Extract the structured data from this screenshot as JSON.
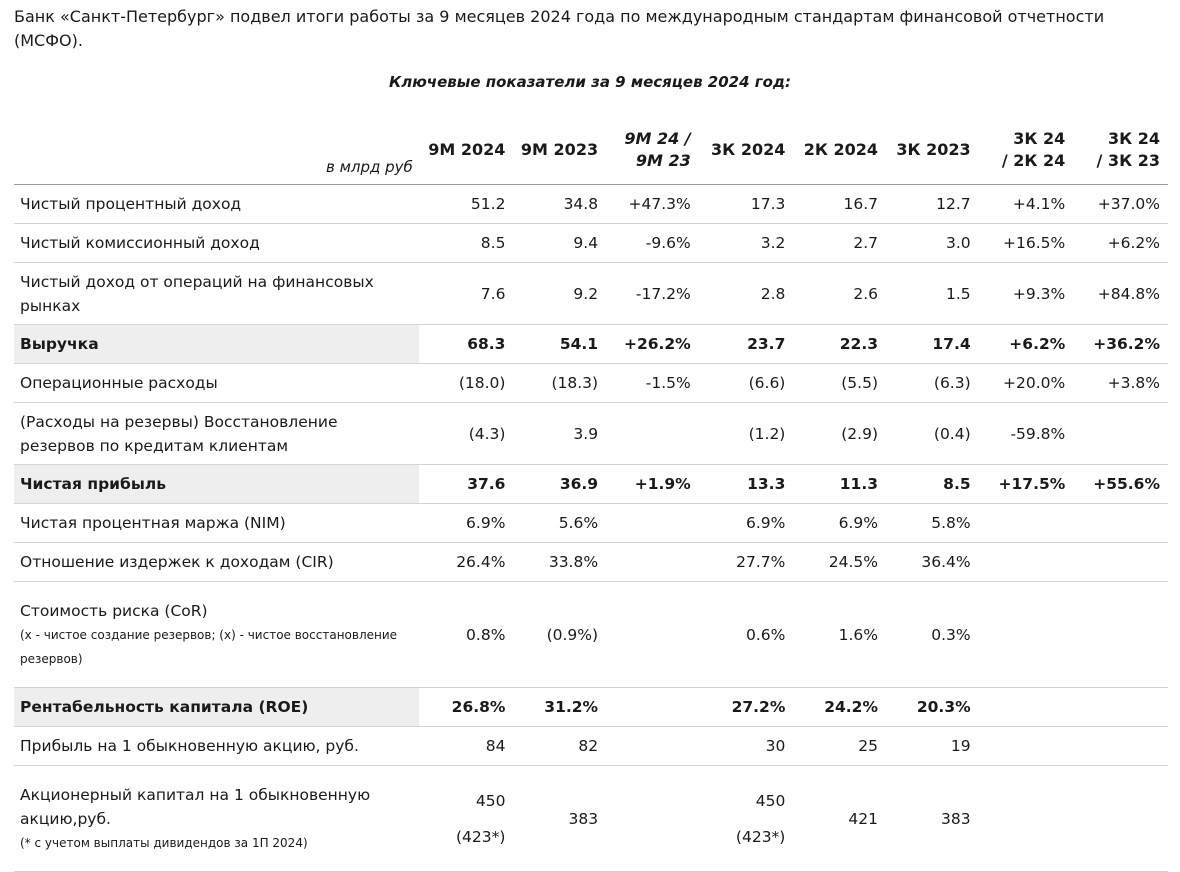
{
  "intro": "Банк «Санкт-Петербург» подвел итоги работы за 9 месяцев 2024 года по международным стандартам финансовой отчетности (МСФО).",
  "caption": "Ключевые показатели за 9 месяцев 2024 год:",
  "table": {
    "unit_label": "в млрд руб",
    "headers": [
      "9M 2024",
      "9M 2023",
      "9M 24 /",
      "9M 23",
      "3К 2024",
      "2К 2024",
      "3К  2023",
      "3К 24",
      "/ 2К 24",
      "3К 24",
      "/ 3К 23"
    ],
    "rows": [
      {
        "label": "Чистый процентный доход",
        "v": [
          "51.2",
          "34.8",
          "+47.3%",
          "17.3",
          "16.7",
          "12.7",
          "+4.1%",
          "+37.0%"
        ]
      },
      {
        "label": "Чистый комиссионный доход",
        "v": [
          "8.5",
          "9.4",
          "-9.6%",
          "3.2",
          "2.7",
          "3.0",
          "+16.5%",
          "+6.2%"
        ]
      },
      {
        "label": "Чистый доход от операций на финансовых рынках",
        "v": [
          "7.6",
          "9.2",
          "-17.2%",
          "2.8",
          "2.6",
          "1.5",
          "+9.3%",
          "+84.8%"
        ]
      },
      {
        "label": "Выручка",
        "v": [
          "68.3",
          "54.1",
          "+26.2%",
          "23.7",
          "22.3",
          "17.4",
          "+6.2%",
          "+36.2%"
        ]
      },
      {
        "label": "Операционные расходы",
        "v": [
          "(18.0)",
          "(18.3)",
          "-1.5%",
          "(6.6)",
          "(5.5)",
          "(6.3)",
          "+20.0%",
          "+3.8%"
        ]
      },
      {
        "label": "(Расходы на резервы) Восстановление резервов по кредитам клиентам",
        "v": [
          "(4.3)",
          "3.9",
          "",
          "(1.2)",
          "(2.9)",
          "(0.4)",
          "-59.8%",
          ""
        ]
      },
      {
        "label": "Чистая прибыль",
        "v": [
          "37.6",
          "36.9",
          "+1.9%",
          "13.3",
          "11.3",
          "8.5",
          "+17.5%",
          "+55.6%"
        ]
      },
      {
        "label": "Чистая процентная маржа (NIM)",
        "v": [
          "6.9%",
          "5.6%",
          "",
          "6.9%",
          "6.9%",
          "5.8%",
          "",
          ""
        ]
      },
      {
        "label": "Отношение издержек к доходам (CIR)",
        "v": [
          "26.4%",
          "33.8%",
          "",
          "27.7%",
          "24.5%",
          "36.4%",
          "",
          ""
        ]
      },
      {
        "label": "Стоимость риска (CoR)",
        "note": "(x - чистое создание резервов; (x) - чистое восстановление резервов)",
        "v": [
          "0.8%",
          "(0.9%)",
          "",
          "0.6%",
          "1.6%",
          "0.3%",
          "",
          ""
        ]
      },
      {
        "label": "Рентабельность капитала (ROE)",
        "v": [
          "26.8%",
          "31.2%",
          "",
          "27.2%",
          "24.2%",
          "20.3%",
          "",
          ""
        ]
      },
      {
        "label": "Прибыль на 1 обыкновенную акцию, руб.",
        "v": [
          "84",
          "82",
          "",
          "30",
          "25",
          "19",
          "",
          ""
        ]
      },
      {
        "label": "Акционерный капитал на 1 обыкновенную акцию,руб.",
        "note": "(* с учетом выплаты дивидендов за 1П 2024)",
        "v": [
          "450",
          "383",
          "",
          "450",
          "421",
          "383",
          "",
          ""
        ],
        "v_sub": [
          "(423*)",
          "",
          "",
          "(423*)",
          "",
          "",
          "",
          ""
        ]
      }
    ]
  }
}
